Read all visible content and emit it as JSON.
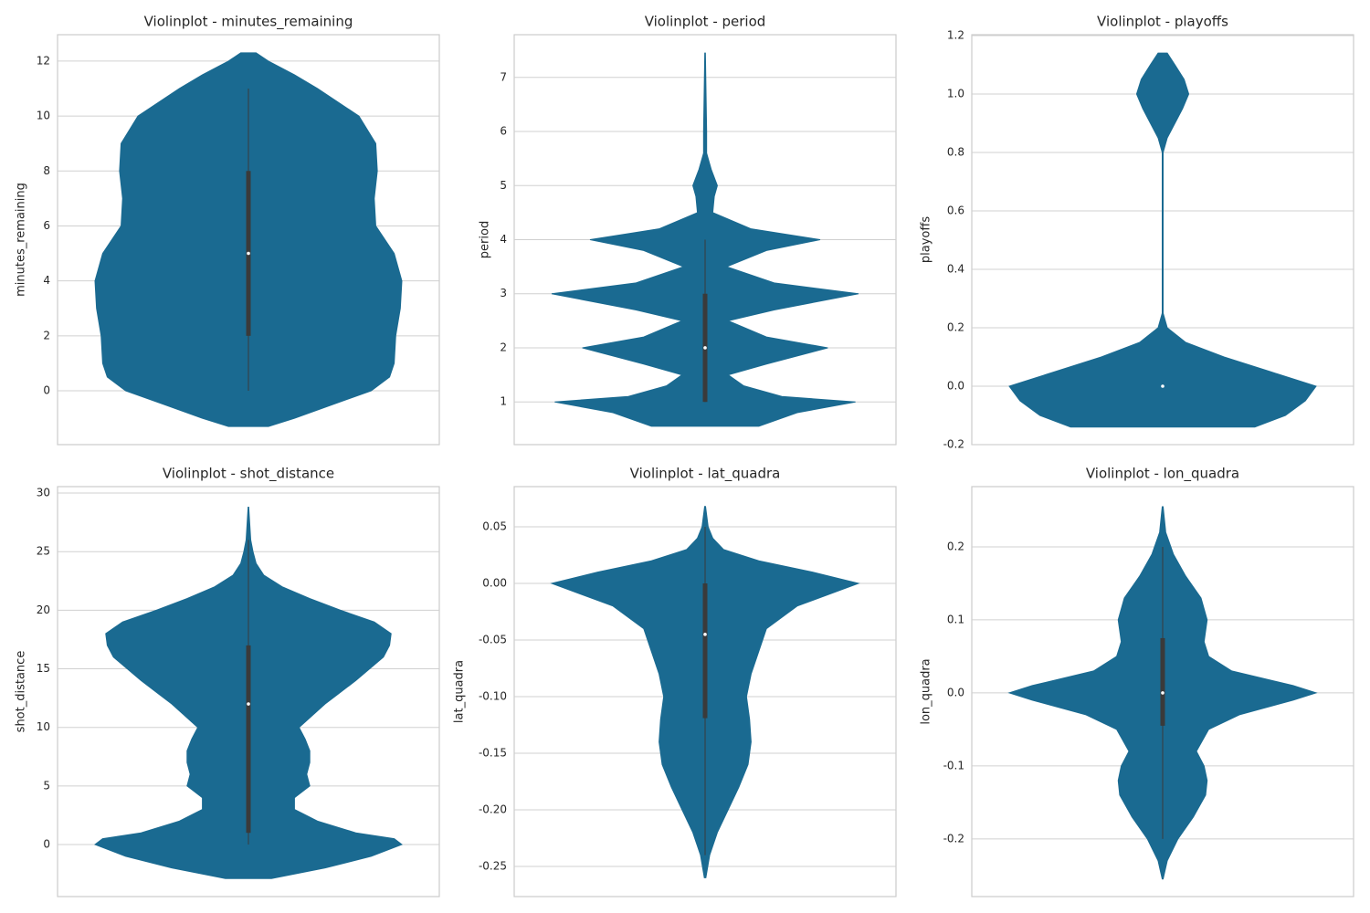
{
  "chart_data": [
    {
      "type": "violin",
      "title": "Violinplot - minutes_remaining",
      "ylabel": "minutes_remaining",
      "color": "#1a6a91",
      "grid": true,
      "ylim": [
        -1.96,
        12.96
      ],
      "yticks": [
        0,
        2,
        4,
        6,
        8,
        10,
        12
      ],
      "violin": {
        "y": [
          -1.3,
          -1,
          -0.5,
          0,
          0.5,
          1,
          2,
          3,
          4,
          5,
          6,
          7,
          8,
          9,
          10,
          11,
          11.5,
          12,
          12.3
        ],
        "width": [
          0.13,
          0.3,
          0.55,
          0.8,
          0.92,
          0.95,
          0.96,
          0.99,
          1.0,
          0.95,
          0.83,
          0.82,
          0.84,
          0.83,
          0.72,
          0.45,
          0.3,
          0.13,
          0.05
        ]
      },
      "box": {
        "whisker_low": 0,
        "q1": 2,
        "median": 5,
        "q3": 8,
        "whisker_high": 11
      }
    },
    {
      "type": "violin",
      "title": "Violinplot - period",
      "ylabel": "period",
      "color": "#1a6a91",
      "grid": true,
      "ylim": [
        0.21,
        7.79
      ],
      "yticks": [
        1,
        2,
        3,
        4,
        5,
        6,
        7
      ],
      "violin": {
        "y": [
          0.55,
          0.8,
          1,
          1.1,
          1.3,
          1.5,
          1.7,
          2,
          2.2,
          2.5,
          2.7,
          3,
          3.2,
          3.5,
          3.8,
          4,
          4.2,
          4.5,
          4.8,
          5,
          5.3,
          5.6,
          6,
          7.45
        ],
        "width": [
          0.35,
          0.6,
          0.98,
          0.5,
          0.25,
          0.15,
          0.4,
          0.8,
          0.4,
          0.15,
          0.45,
          1.0,
          0.45,
          0.14,
          0.4,
          0.75,
          0.3,
          0.05,
          0.06,
          0.08,
          0.04,
          0.01,
          0.01,
          0.002
        ]
      },
      "box": {
        "whisker_low": 1,
        "q1": 1,
        "median": 2,
        "q3": 3,
        "whisker_high": 4
      }
    },
    {
      "type": "violin",
      "title": "Violinplot - playoffs",
      "ylabel": "playoffs",
      "color": "#1a6a91",
      "grid": true,
      "ylim": [
        -0.2,
        1.203
      ],
      "yticks": [
        -0.2,
        {
          "value": 0,
          "label": "0.0"
        },
        0.2,
        0.4,
        0.6,
        0.8,
        {
          "value": 1,
          "label": "1.0"
        },
        1.2
      ],
      "violin": {
        "y": [
          -0.14,
          -0.1,
          -0.05,
          0,
          0.05,
          0.1,
          0.15,
          0.2,
          0.25,
          0.8,
          0.85,
          0.9,
          0.95,
          1.0,
          1.05,
          1.1,
          1.14
        ],
        "width": [
          0.6,
          0.8,
          0.93,
          1.0,
          0.7,
          0.4,
          0.15,
          0.03,
          0.003,
          0.003,
          0.03,
          0.08,
          0.13,
          0.17,
          0.14,
          0.08,
          0.03
        ]
      },
      "box": {
        "whisker_low": 0,
        "q1": 0,
        "median": 0,
        "q3": 0,
        "whisker_high": 0
      }
    },
    {
      "type": "violin",
      "title": "Violinplot - shot_distance",
      "ylabel": "shot_distance",
      "color": "#1a6a91",
      "grid": true,
      "ylim": [
        -4.44,
        30.55
      ],
      "yticks": [
        0,
        5,
        10,
        15,
        20,
        25,
        30
      ],
      "violin": {
        "y": [
          -2.9,
          -2,
          -1,
          0,
          0.5,
          1,
          2,
          3,
          4,
          5,
          6,
          7,
          8,
          9,
          10,
          12,
          14,
          16,
          17,
          18,
          19,
          20,
          21,
          22,
          23,
          24,
          25,
          26,
          28.8
        ],
        "width": [
          0.15,
          0.5,
          0.8,
          1.0,
          0.95,
          0.7,
          0.45,
          0.3,
          0.3,
          0.4,
          0.38,
          0.4,
          0.4,
          0.37,
          0.33,
          0.5,
          0.7,
          0.88,
          0.92,
          0.93,
          0.82,
          0.6,
          0.4,
          0.22,
          0.1,
          0.05,
          0.03,
          0.015,
          0.002
        ]
      },
      "box": {
        "whisker_low": 0,
        "q1": 1,
        "median": 12,
        "q3": 17,
        "whisker_high": 26
      }
    },
    {
      "type": "violin",
      "title": "Violinplot - lat_quadra",
      "ylabel": "lat_quadra",
      "color": "#1a6a91",
      "grid": true,
      "ylim": [
        -0.2766,
        0.0855
      ],
      "yticks": [
        -0.25,
        {
          "value": -0.2,
          "label": "-0.20"
        },
        -0.15,
        {
          "value": -0.1,
          "label": "-0.10"
        },
        -0.05,
        {
          "value": 0,
          "label": "0.00"
        },
        0.05
      ],
      "violin": {
        "y": [
          -0.26,
          -0.24,
          -0.22,
          -0.2,
          -0.18,
          -0.16,
          -0.14,
          -0.12,
          -0.1,
          -0.08,
          -0.06,
          -0.04,
          -0.02,
          0,
          0.01,
          0.02,
          0.03,
          0.04,
          0.05,
          0.068
        ],
        "width": [
          0.005,
          0.03,
          0.08,
          0.15,
          0.22,
          0.28,
          0.3,
          0.29,
          0.27,
          0.3,
          0.35,
          0.4,
          0.6,
          1.0,
          0.7,
          0.35,
          0.12,
          0.05,
          0.02,
          0.003
        ]
      },
      "box": {
        "whisker_low": -0.24,
        "q1": -0.119,
        "median": -0.045,
        "q3": 0,
        "whisker_high": 0.05
      }
    },
    {
      "type": "violin",
      "title": "Violinplot - lon_quadra",
      "ylabel": "lon_quadra",
      "color": "#1a6a91",
      "grid": true,
      "ylim": [
        -0.279,
        0.2825
      ],
      "yticks": [
        -0.2,
        -0.1,
        {
          "value": 0,
          "label": "0.0"
        },
        0.1,
        0.2
      ],
      "violin": {
        "y": [
          -0.255,
          -0.23,
          -0.2,
          -0.17,
          -0.14,
          -0.12,
          -0.1,
          -0.08,
          -0.05,
          -0.03,
          -0.01,
          0,
          0.01,
          0.03,
          0.05,
          0.07,
          0.1,
          0.13,
          0.16,
          0.19,
          0.22,
          0.255
        ],
        "width": [
          0.003,
          0.03,
          0.1,
          0.2,
          0.28,
          0.29,
          0.27,
          0.22,
          0.3,
          0.5,
          0.85,
          1.0,
          0.85,
          0.45,
          0.3,
          0.27,
          0.29,
          0.25,
          0.15,
          0.07,
          0.02,
          0.003
        ]
      },
      "box": {
        "whisker_low": -0.2,
        "q1": -0.045,
        "median": 0,
        "q3": 0.075,
        "whisker_high": 0.2
      }
    }
  ]
}
